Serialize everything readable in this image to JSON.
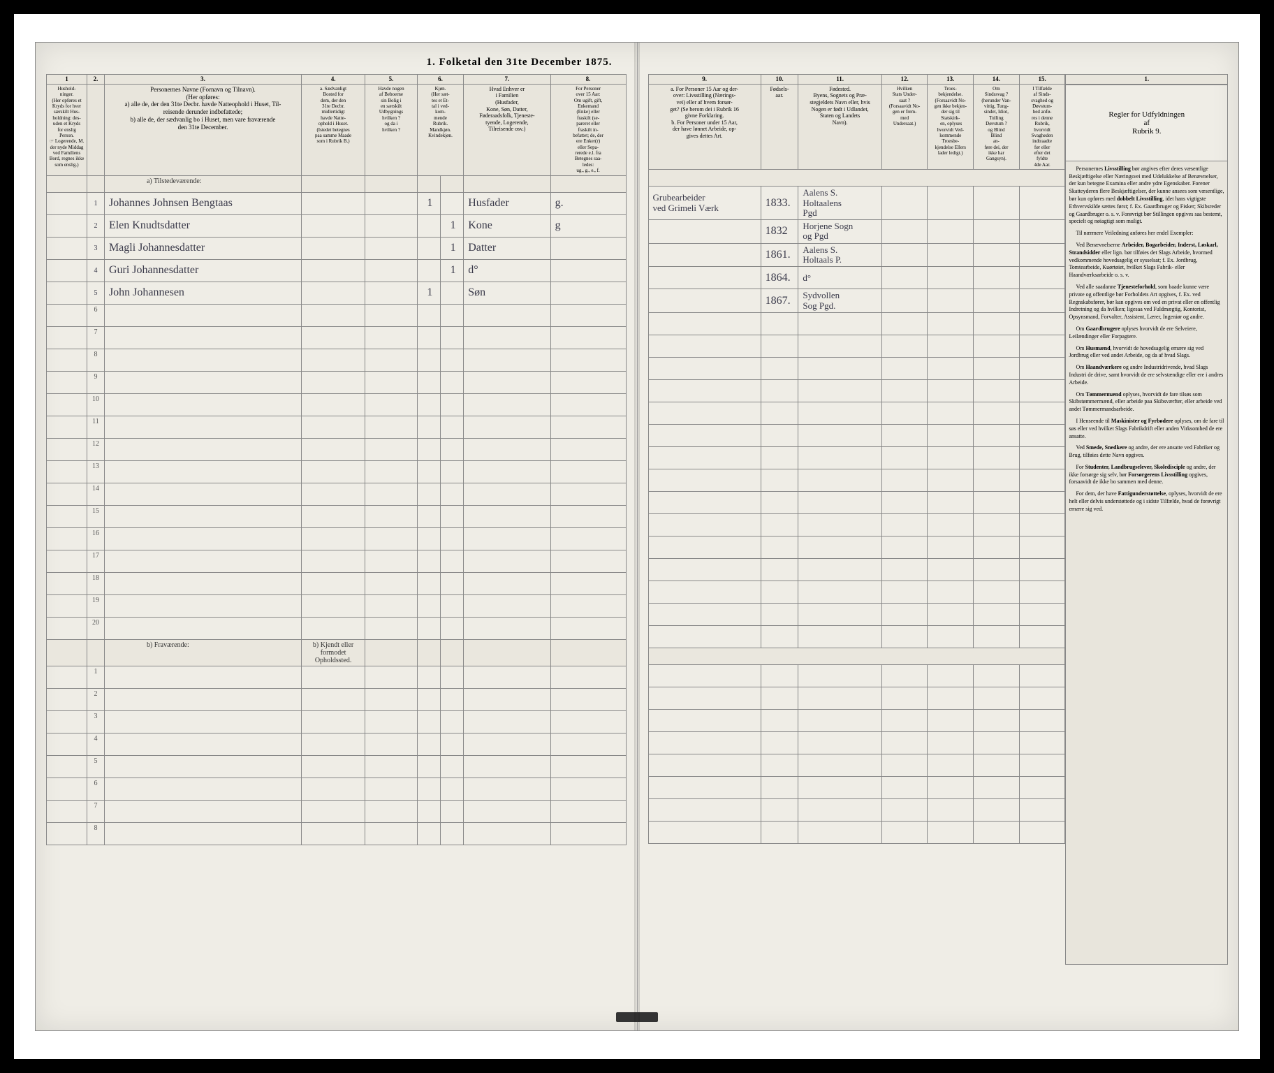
{
  "title": "1. Folketal den 31te December 1875.",
  "columns_left": {
    "nums": [
      "1",
      "2.",
      "3.",
      "4.",
      "5.",
      "6.",
      "7.",
      "8."
    ],
    "h1": "Hushold-\nninger.\n(Her opføres et\nKryds for hver\nsærskilt Hus-\nholdning: des-\nuden et Kryds\nfor enslig\nPerson.\n☞ Logerende, M.\nder nyde Middag\nved Familiens\nBord, regnes ikke\nsom enslig.)",
    "h2": "",
    "h3": "Personernes Navne (Fornavn og Tilnavn).\n(Her opføres:\na) alle de, der den 31te Decbr. havde Natteophold i Huset, Til-\nreisende derunder indbefattede;\nb) alle de, der sædvanlig bo i Huset, men vare fraværende\nden 31te December.",
    "h4": "a. Sædvanligt\nBosted for\ndem, der den\n31te Decbr.\nmidlertidigt\nhavde Natte-\nophold i Huset.\n(Istedet betegnes\npaa samme Maade\nsom i Rubrik B.)",
    "h5": "Havde nogen\naf Beboerne\nsin Bolig i\nen særskilt\nUdbygnings\nhvilken ?\nog da i\nhvilken ?",
    "h6": "Kjøn.\n(Her sæt-\ntes et Et-\ntal i ved-\nkom-\nmende\nRubrik.\nMandkjøn.\nKvindekjøn.",
    "h7": "Hvad Enhver er\ni Familien\n(Husfader,\nKone, Søn, Datter,\nFøderaadsfolk, Tjeneste-\ntyende, Logerende,\nTilreisende osv.)",
    "h8": "For Personer\nover 15 Aar:\nOm ugift, gift,\nEnkemand\n(Enke) eller\nfraskilt (se-\npareret eller\nfraskilt in-\nbefattet; de, der\nere Enker(r)\neller Sepa-\nrerede e.l. fra\nBetegnes saa-\nledes:\nug., g., e., f."
  },
  "columns_right": {
    "nums": [
      "9.",
      "10.",
      "11.",
      "12.",
      "13.",
      "14.",
      "15.",
      "1."
    ],
    "h9": "a. For Personer 15 Aar og der-\nover: Livsstilling (Nærings-\nvei) eller af hvem forsør-\nget? (Se herom dei i Rubrik 16\ngivne Forklaring.\nb. For Personer under 15 Aar,\nder have lønnet Arbeide, op-\ngives dettes Art.",
    "h10": "Fødsels-\naar.",
    "h11": "Fødested.\nByens, Sognets og Præ-\nstegjeldets Navn eller, hvis\nNogen er født i Udlandet,\nStaten og Landets\nNavn).",
    "h12": "Hvilken\nStats Under-\nsaat ?\n(Forsaavidt No-\ngen er frem-\nmed\nUndersaat.)",
    "h13": "Troes-\nbekjendelse.\n(Forsaavidt No-\ngen ikke bekjen-\nder sig til\nStatskirk-\n en, oplyses\nhvorvidt Ved-\nkommende\nTroesbe-\nkjendelse Ellers\nlader ledigt.)",
    "h14": "Om\nSindssvag ?\n(herunder Van-\nvittig, Tung-\nsindet, Idiot,\nTulling\nDøvstum ?\nog Blind\nBlind\nan-\nføre dei, der\nikke har\nGangsyn).",
    "h15": "I Tilfælde\naf Sinds-\nsvaghed og\nDøvstum-\nhed anfø-\nres i denne\nRubrik,\nhvorvidt\nSvagheden\nindtraadte\nfør eller\nefter det\nfyldte\n4de Aar."
  },
  "instructions_title": "Regler for Udfyldningen\naf\nRubrik 9.",
  "section_a": "a) Tilstedeværende:",
  "section_b": "b) Fraværende:",
  "section_b_col4": "b) Kjendt eller\nformodet\nOpholdssted.",
  "rows": [
    {
      "n": "1",
      "name": "Johannes Johnsen Bengtaas",
      "c4": "",
      "c5": "",
      "c6m": "1",
      "c6k": "",
      "c7": "Husfader",
      "c8": "g.",
      "c9": "Grubearbeider\nved Grimeli Værk",
      "c10": "1833.",
      "c11": "Aalens S.\nHoltaalens\nPgd",
      "c12": "",
      "c13": "",
      "c14": "",
      "c15": ""
    },
    {
      "n": "",
      "name": "Elen Knudtsdatter",
      "c4": "",
      "c5": "",
      "c6m": "",
      "c6k": "1",
      "c7": "Kone",
      "c8": "g",
      "c9": "",
      "c10": "1832",
      "c11": "Horjene Sogn\nog Pgd",
      "c12": "",
      "c13": "",
      "c14": "",
      "c15": ""
    },
    {
      "n": "",
      "name": "Magli Johannesdatter",
      "c4": "",
      "c5": "",
      "c6m": "",
      "c6k": "1",
      "c7": "Datter",
      "c8": "",
      "c9": "",
      "c10": "1861.",
      "c11": "Aalens S.\nHoltaals P.",
      "c12": "",
      "c13": "",
      "c14": "",
      "c15": ""
    },
    {
      "n": "",
      "name": "Guri Johannesdatter",
      "c4": "",
      "c5": "",
      "c6m": "",
      "c6k": "1",
      "c7": "d°",
      "c8": "",
      "c9": "",
      "c10": "1864.",
      "c11": "d°",
      "c12": "",
      "c13": "",
      "c14": "",
      "c15": ""
    },
    {
      "n": "",
      "name": "John Johannesen",
      "c4": "",
      "c5": "",
      "c6m": "1",
      "c6k": "",
      "c7": "Søn",
      "c8": "",
      "c9": "",
      "c10": "1867.",
      "c11": "Sydvollen\nSog Pgd.",
      "c12": "",
      "c13": "",
      "c14": "",
      "c15": ""
    }
  ],
  "left_row_labels": [
    "1",
    "2",
    "3",
    "4",
    "5",
    "6",
    "7",
    "8",
    "9",
    "10",
    "11",
    "12",
    "13",
    "14",
    "15",
    "16",
    "17",
    "18",
    "19",
    "20"
  ],
  "b_row_labels": [
    "1",
    "2",
    "3",
    "4",
    "5",
    "6",
    "7",
    "8"
  ],
  "instructions_body": [
    "Personernes <b>Livsstilling</b> bør angives efter deres væsentlige Beskjæftigelse eller Næringsvei med Udelukkelse af Benævnelser, der kun betegne Examina eller andre ydre Egenskaber. Forener Skatteyderen flere Beskjæftigelser, der kunne ansees som væsentlige, bør kun opføres med <b>dobbelt Livsstilling</b>, idet hans vigtigste Erhvervskilde sættes først; f. Ex. Gaardbruger og Fisker; Skibsreder og Gaardbruger o. s. v. Forøvrigt bør Stillingen opgives saa bestemt, specielt og nøiagtigt som muligt.",
    "Til nærmere Veiledning anføres her endel Exempler:",
    "Ved Benævnelserne <b>Arbeider, Bogarbeider, Inderst, Løskarl, Strandsidder</b> eller lign. bør tilføies det Slags Arbeide, hvormed vedkommende hovedsagelig er sysselsat; f. Ex. Jordbrug, Tomtearbeide, Kuørtøiet, hvilket Slags Fabrik- eller Haandværksarbeide o. s. v.",
    "Ved alle saadanne <b>Tjenesteforhold</b>, som baade kunne være private og offentlige bør Forholdets Art opgives, f. Ex. ved Regnskabsfører, bør kan opgives om ved en privat eller en offentlig Indretning og da hvilken; ligesaa ved Fuldmægtig, Kontorist, Opsynsmand, Forvalter, Assistent, Lærer, Ingeniør og andre.",
    "Om <b>Gaardbrugere</b> oplyses hvorvidt de ere Selveiere, Leilændinger eller Forpagtere.",
    "Om <b>Husmænd</b>, hvorvidt de hovedsagelig ernære sig ved Jordbrug eller ved andet Arbeide, og da af hvad Slags.",
    "Om <b>Haandværkere</b> og andre Industridrivende, hvad Slags Industri de drive, samt hvorvidt de ere selvstændige eller ere i andres Arbeide.",
    "Om <b>Tømmermænd</b> oplyses, hvorvidt de fare tilsøs som Skibstømmermænd, eller arbeide paa Skibsværfter, eller arbeide ved andet Tømmermandsarbeide.",
    "I Henseende til <b>Maskinister og Fyrbødere</b> oplyses, om de fare til søs eller ved hvilket Slags Fabrikdrift eller anden Virksomhed de ere ansatte.",
    "Ved <b>Smede, Snedkere</b> og andre, der ere ansatte ved Fabriker og Brug, tilføies dette Navn opgives.",
    "For <b>Studenter, Landbrugselever, Skoledisciple</b> og andre, der ikke forsørge sig selv, bør <b>Forsørgerens Livsstilling</b> opgives, forsaavidt de ikke bo sammen med denne.",
    "For dem, der have <b>Fattigunderstøttelse</b>, oplyses, hvorvidt de ere helt eller delvis understøttede og i sidste Tilfælde, hvad de forøvrigt ernære sig ved."
  ],
  "colors": {
    "paper": "#efede6",
    "header_bg": "#e8e5dc",
    "rule": "#888888",
    "ink": "#3a3a4a",
    "frame": "#000000"
  }
}
